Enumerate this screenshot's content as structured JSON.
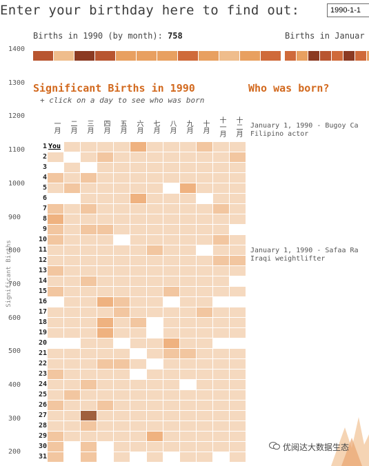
{
  "header": {
    "prompt": "Enter your birthday here to find out:",
    "input_value": "1990-1-1"
  },
  "summary": {
    "caption": "Births in 1990 (by month):",
    "count": "758",
    "caption2": "Births in Januar"
  },
  "y_axis": {
    "title": "Significant Births",
    "ticks": [
      "1400",
      "1300",
      "1200",
      "1100",
      "1000",
      "900",
      "800",
      "700",
      "600",
      "500",
      "400",
      "300",
      "200"
    ]
  },
  "main": {
    "title": "Significant Births in 1990",
    "subtitle": "+ click on a day to see who was born",
    "you_label": "You"
  },
  "months": [
    "一月",
    "二月",
    "三月",
    "四月",
    "五月",
    "六月",
    "七月",
    "八月",
    "九月",
    "十月",
    "十一月",
    "十二月"
  ],
  "days": [
    "1",
    "2",
    "3",
    "4",
    "5",
    "6",
    "7",
    "8",
    "9",
    "10",
    "11",
    "12",
    "13",
    "14",
    "15",
    "16",
    "17",
    "18",
    "19",
    "20",
    "21",
    "22",
    "23",
    "24",
    "25",
    "26",
    "27",
    "28",
    "29",
    "30",
    "31"
  ],
  "sidebar": {
    "title": "Who was born?",
    "entries": [
      {
        "line1": "January 1, 1990 - Bugoy Ca",
        "line2": "Filipino actor"
      },
      {
        "line1": "January 1, 1990 - Safaa Ra",
        "line2": "Iraqi weightlifter"
      }
    ]
  },
  "watermark": {
    "text": "优阅达大数据生态"
  },
  "colors": {
    "accent": "#d2691e",
    "level0": "#ffffff",
    "level1": "#f5d9bf",
    "level2": "#f2c6a0",
    "level3": "#efb280",
    "level4": "#e98f55",
    "level5": "#a0603e"
  },
  "strip_levels": [
    5,
    2,
    6,
    5,
    3,
    3,
    3,
    4,
    3,
    2,
    3,
    4
  ],
  "strip2_levels": [
    4,
    3,
    6,
    5,
    4,
    6,
    4,
    3
  ],
  "grid_levels": [
    [
      9,
      1,
      1,
      1,
      1,
      3,
      1,
      1,
      1,
      2,
      1,
      1
    ],
    [
      1,
      0,
      1,
      2,
      1,
      1,
      1,
      1,
      1,
      1,
      1,
      2
    ],
    [
      0,
      1,
      0,
      1,
      1,
      1,
      1,
      1,
      1,
      1,
      1,
      1
    ],
    [
      2,
      1,
      2,
      1,
      1,
      1,
      1,
      1,
      1,
      1,
      1,
      1
    ],
    [
      1,
      2,
      1,
      1,
      1,
      1,
      1,
      0,
      3,
      1,
      1,
      1
    ],
    [
      0,
      0,
      1,
      1,
      1,
      3,
      1,
      1,
      1,
      0,
      1,
      1
    ],
    [
      2,
      1,
      2,
      1,
      1,
      1,
      1,
      1,
      1,
      1,
      2,
      1
    ],
    [
      3,
      1,
      1,
      1,
      1,
      1,
      1,
      1,
      1,
      1,
      1,
      1
    ],
    [
      2,
      1,
      2,
      2,
      1,
      1,
      1,
      1,
      1,
      1,
      1,
      0
    ],
    [
      2,
      1,
      1,
      1,
      0,
      1,
      1,
      1,
      1,
      1,
      2,
      1
    ],
    [
      1,
      1,
      1,
      1,
      1,
      1,
      2,
      1,
      1,
      0,
      1,
      1
    ],
    [
      1,
      1,
      1,
      1,
      1,
      1,
      1,
      1,
      1,
      1,
      2,
      2
    ],
    [
      2,
      1,
      1,
      1,
      1,
      1,
      1,
      1,
      1,
      1,
      1,
      1
    ],
    [
      1,
      1,
      2,
      1,
      1,
      1,
      1,
      1,
      1,
      1,
      1,
      0
    ],
    [
      2,
      1,
      1,
      1,
      1,
      1,
      1,
      2,
      1,
      1,
      1,
      1
    ],
    [
      0,
      1,
      1,
      3,
      2,
      1,
      1,
      0,
      1,
      1,
      0,
      0
    ],
    [
      1,
      1,
      1,
      1,
      2,
      1,
      1,
      1,
      1,
      2,
      1,
      1
    ],
    [
      1,
      1,
      1,
      3,
      1,
      2,
      0,
      1,
      1,
      1,
      1,
      1
    ],
    [
      1,
      1,
      1,
      3,
      1,
      1,
      0,
      1,
      1,
      1,
      1,
      1
    ],
    [
      0,
      0,
      1,
      1,
      0,
      1,
      1,
      3,
      1,
      1,
      0,
      0
    ],
    [
      1,
      1,
      1,
      1,
      1,
      0,
      1,
      2,
      2,
      1,
      1,
      1
    ],
    [
      1,
      1,
      1,
      2,
      2,
      1,
      0,
      1,
      1,
      1,
      1,
      1
    ],
    [
      2,
      1,
      1,
      1,
      1,
      0,
      1,
      1,
      1,
      1,
      1,
      1
    ],
    [
      1,
      1,
      2,
      1,
      1,
      1,
      1,
      1,
      0,
      1,
      1,
      1
    ],
    [
      1,
      2,
      1,
      1,
      1,
      1,
      1,
      1,
      1,
      1,
      1,
      1
    ],
    [
      2,
      1,
      1,
      2,
      1,
      1,
      1,
      1,
      1,
      1,
      1,
      1
    ],
    [
      1,
      1,
      5,
      1,
      1,
      1,
      1,
      1,
      1,
      1,
      1,
      1
    ],
    [
      1,
      1,
      2,
      1,
      1,
      1,
      1,
      1,
      1,
      1,
      1,
      1
    ],
    [
      2,
      1,
      1,
      1,
      1,
      1,
      3,
      1,
      1,
      1,
      1,
      1
    ],
    [
      2,
      0,
      2,
      0,
      1,
      1,
      1,
      1,
      1,
      1,
      1,
      1
    ],
    [
      2,
      0,
      2,
      0,
      1,
      0,
      1,
      0,
      1,
      1,
      0,
      1
    ]
  ]
}
